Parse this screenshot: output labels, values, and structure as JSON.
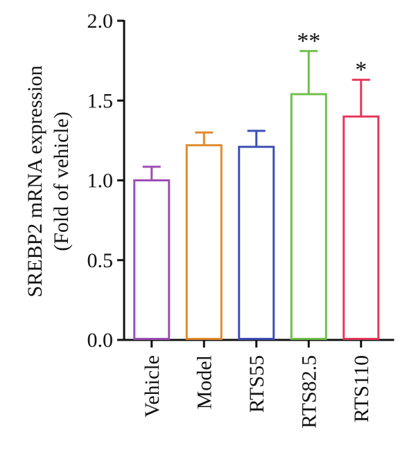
{
  "chart_data": {
    "type": "bar",
    "categories": [
      "Vehicle",
      "Model",
      "RTS55",
      "RTS82.5",
      "RTS110"
    ],
    "values": [
      1.0,
      1.22,
      1.21,
      1.54,
      1.4
    ],
    "errors": [
      0.085,
      0.08,
      0.1,
      0.27,
      0.23
    ],
    "colors": [
      "#9b4fb3",
      "#e08a2e",
      "#3b4fb5",
      "#6fbf4a",
      "#e6375a"
    ],
    "significance": [
      "",
      "",
      "",
      "**",
      "*"
    ],
    "ylabel_line1": "SREBP2 mRNA expression",
    "ylabel_line2": "(Fold of vehicle)",
    "ylim": [
      0,
      2.0
    ],
    "yticks": [
      "0.0",
      "0.5",
      "1.0",
      "1.5",
      "2.0"
    ],
    "grid": false,
    "legend": "none"
  }
}
